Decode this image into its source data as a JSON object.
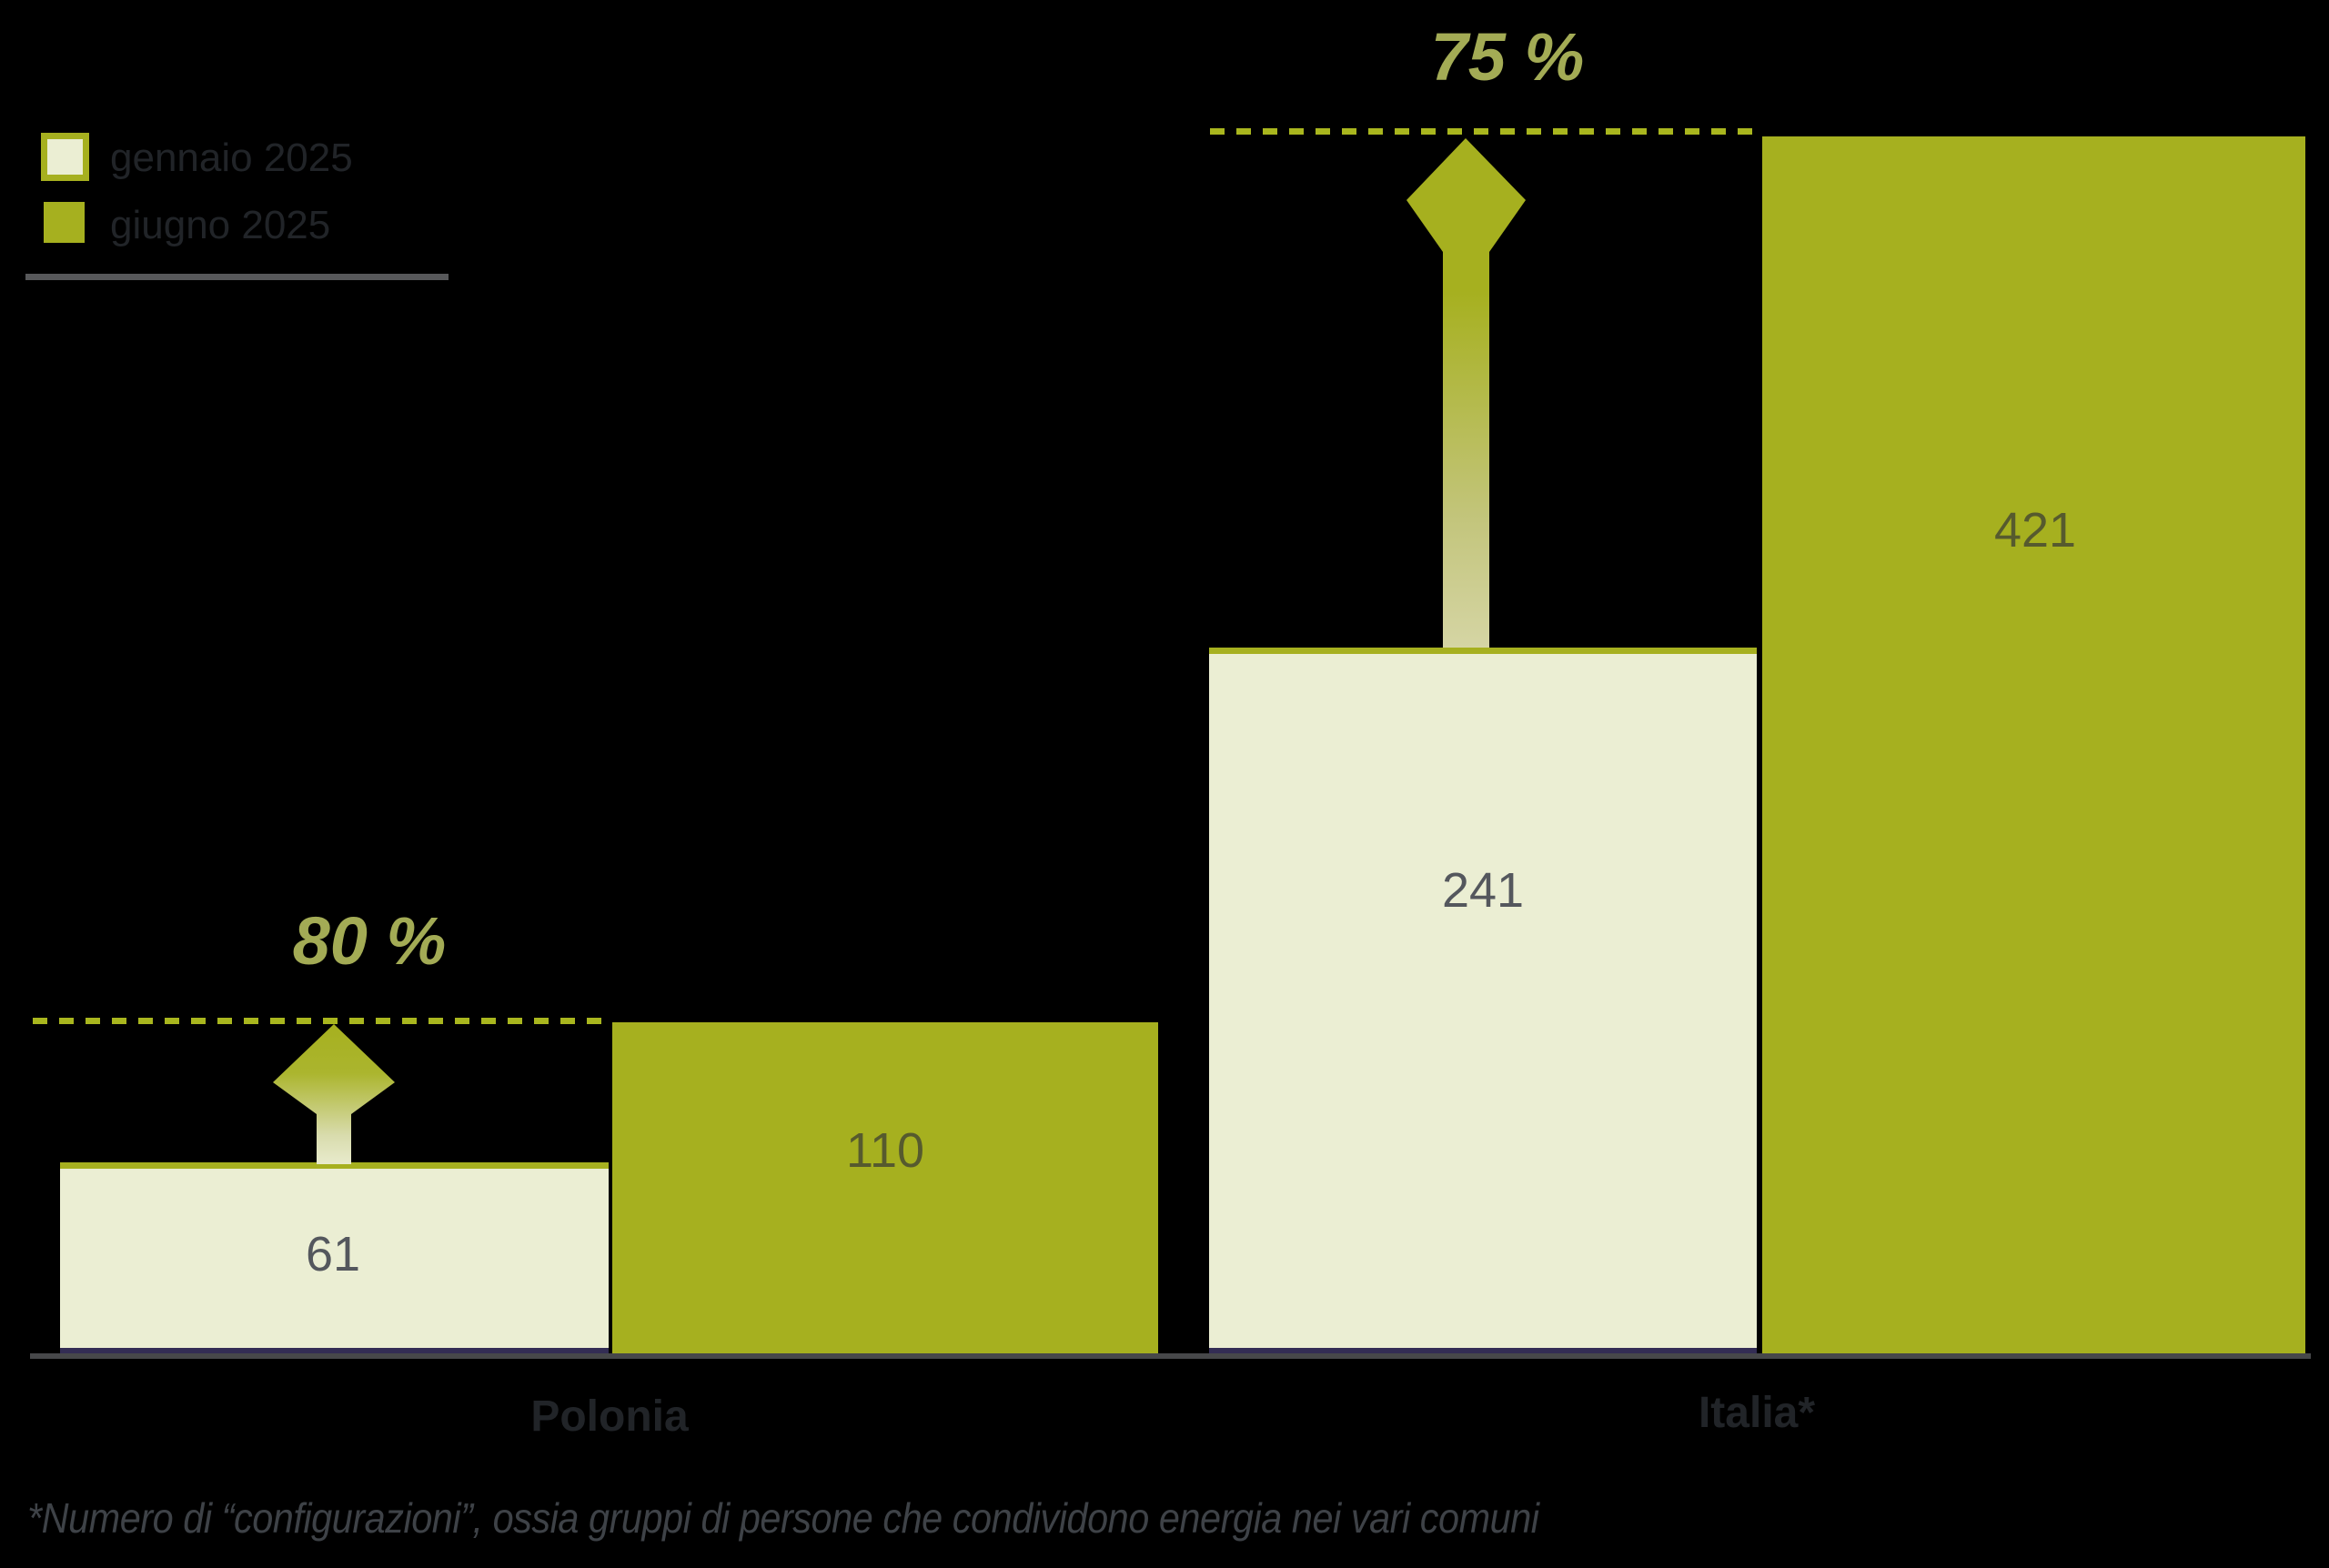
{
  "chart_data": {
    "type": "bar",
    "categories": [
      "Polonia",
      "Italia*"
    ],
    "series": [
      {
        "name": "gennaio 2025",
        "color": "#ebeed3",
        "values": [
          61,
          241
        ]
      },
      {
        "name": "giugno 2025",
        "color": "#a6b01f",
        "values": [
          110,
          421
        ]
      }
    ],
    "growth_annotations": [
      {
        "category": "Polonia",
        "label": "80 %"
      },
      {
        "category": "Italia*",
        "label": "75 %"
      }
    ],
    "footnote": "*Numero di “configurazioni”, ossia gruppi di persone che condividono energia nei vari comuni",
    "ylim": [
      0,
      421
    ],
    "grid": false,
    "legend_position": "top-left",
    "background": "#000000"
  },
  "legend": {
    "items": [
      {
        "label": "gennaio 2025",
        "swatch": "cream-outlined"
      },
      {
        "label": "giugno 2025",
        "swatch": "solid-olive"
      }
    ]
  },
  "colors": {
    "olive": "#a6b01f",
    "cream": "#ebeed3",
    "dashed_line": "#a9b61e",
    "percent_text": "#a3ab55",
    "value_text_gray": "#54575d",
    "value_text_olive_bar": "#565a2e",
    "axis_line": "#47484a",
    "legend_divider": "#57585a",
    "footnote_text": "#3e4247"
  }
}
